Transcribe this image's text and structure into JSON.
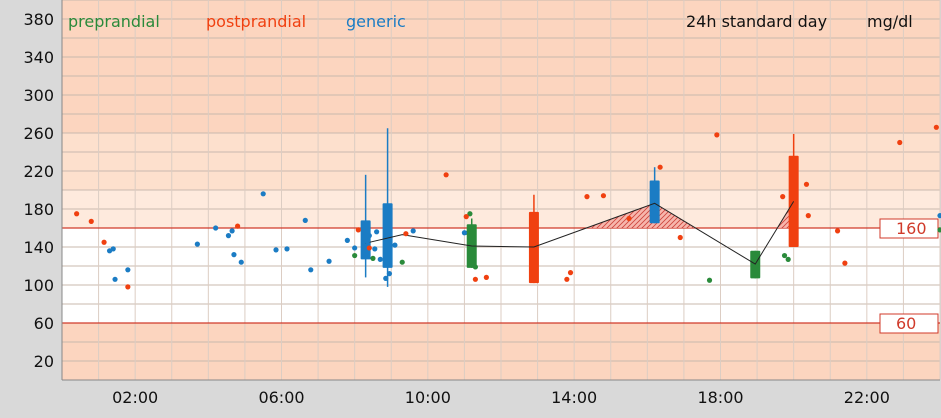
{
  "chart_data": {
    "type": "scatter",
    "title": "24h standard day",
    "unit": "mg/dl",
    "ylim": [
      0,
      400
    ],
    "xlim": [
      0,
      24
    ],
    "y_ticks": [
      20,
      60,
      100,
      140,
      180,
      220,
      260,
      300,
      340,
      380
    ],
    "x_ticks": [
      2,
      6,
      10,
      14,
      18,
      22
    ],
    "x_tick_labels": [
      "02:00",
      "06:00",
      "10:00",
      "14:00",
      "18:00",
      "22:00"
    ],
    "grid": true,
    "legend_position": "top-left",
    "limits": [
      {
        "value": 160,
        "label": "160"
      },
      {
        "value": 60,
        "label": "60"
      }
    ],
    "colors": {
      "preprandial": "#2a8a3a",
      "postprandial": "#f04010",
      "generic": "#1b7cc4",
      "limit_line": "#d03a2a",
      "background_low": "#fcd5bf",
      "background_high": "#fcd5bf",
      "target_band": "#ffffff",
      "plot_outer": "#d9d9d9"
    },
    "series": [
      {
        "name": "preprandial",
        "points": [
          [
            8.0,
            131
          ],
          [
            8.5,
            128
          ],
          [
            9.3,
            124
          ],
          [
            11.1,
            155
          ],
          [
            11.15,
            175
          ],
          [
            11.25,
            123
          ],
          [
            11.3,
            119
          ],
          [
            17.7,
            105
          ],
          [
            19.75,
            131
          ],
          [
            19.85,
            127
          ],
          [
            24.0,
            158
          ]
        ],
        "boxes": [
          {
            "x": 11.2,
            "low": 118,
            "q1": 118,
            "q3": 164,
            "high": 170
          },
          {
            "x": 18.95,
            "low": 107,
            "q1": 107,
            "q3": 136,
            "high": 136
          }
        ]
      },
      {
        "name": "postprandial",
        "points": [
          [
            0.4,
            175
          ],
          [
            0.8,
            167
          ],
          [
            1.15,
            145
          ],
          [
            1.8,
            98
          ],
          [
            8.1,
            158
          ],
          [
            8.4,
            139
          ],
          [
            9.4,
            154
          ],
          [
            10.5,
            216
          ],
          [
            11.05,
            172
          ],
          [
            11.3,
            106
          ],
          [
            11.6,
            108
          ],
          [
            13.8,
            106
          ],
          [
            13.9,
            113
          ],
          [
            14.35,
            193
          ],
          [
            14.8,
            194
          ],
          [
            15.5,
            170
          ],
          [
            16.35,
            224
          ],
          [
            16.9,
            150
          ],
          [
            17.9,
            258
          ],
          [
            19.7,
            193
          ],
          [
            20.35,
            206
          ],
          [
            20.4,
            173
          ],
          [
            21.2,
            157
          ],
          [
            21.4,
            123
          ],
          [
            22.9,
            250
          ],
          [
            23.9,
            266
          ],
          [
            4.8,
            162
          ]
        ],
        "boxes": [
          {
            "x": 12.9,
            "low": 102,
            "q1": 102,
            "q3": 177,
            "high": 195
          },
          {
            "x": 20.0,
            "low": 140,
            "q1": 140,
            "q3": 236,
            "high": 259
          }
        ]
      },
      {
        "name": "generic",
        "points": [
          [
            1.3,
            136
          ],
          [
            1.4,
            138
          ],
          [
            1.45,
            106
          ],
          [
            1.8,
            116
          ],
          [
            3.7,
            143
          ],
          [
            4.2,
            160
          ],
          [
            4.55,
            152
          ],
          [
            4.65,
            157
          ],
          [
            4.7,
            132
          ],
          [
            4.9,
            124
          ],
          [
            5.5,
            196
          ],
          [
            5.85,
            137
          ],
          [
            6.15,
            138
          ],
          [
            6.65,
            168
          ],
          [
            6.8,
            116
          ],
          [
            7.3,
            125
          ],
          [
            7.8,
            147
          ],
          [
            8.0,
            139
          ],
          [
            8.35,
            146
          ],
          [
            8.4,
            152
          ],
          [
            8.55,
            138
          ],
          [
            8.6,
            156
          ],
          [
            8.7,
            127
          ],
          [
            8.85,
            107
          ],
          [
            8.95,
            112
          ],
          [
            9.1,
            142
          ],
          [
            9.6,
            157
          ],
          [
            11.0,
            155
          ],
          [
            24.0,
            173
          ]
        ],
        "boxes": [
          {
            "x": 8.3,
            "low": 108,
            "q1": 127,
            "q3": 168,
            "high": 216
          },
          {
            "x": 8.9,
            "low": 98,
            "q1": 118,
            "q3": 186,
            "high": 265
          },
          {
            "x": 16.2,
            "low": 165,
            "q1": 165,
            "q3": 210,
            "high": 224
          }
        ]
      }
    ],
    "median_line": [
      [
        8.3,
        144
      ],
      [
        9.3,
        153
      ],
      [
        11.2,
        141
      ],
      [
        12.9,
        140
      ],
      [
        16.2,
        186
      ],
      [
        18.95,
        122
      ],
      [
        20.0,
        188
      ]
    ]
  }
}
